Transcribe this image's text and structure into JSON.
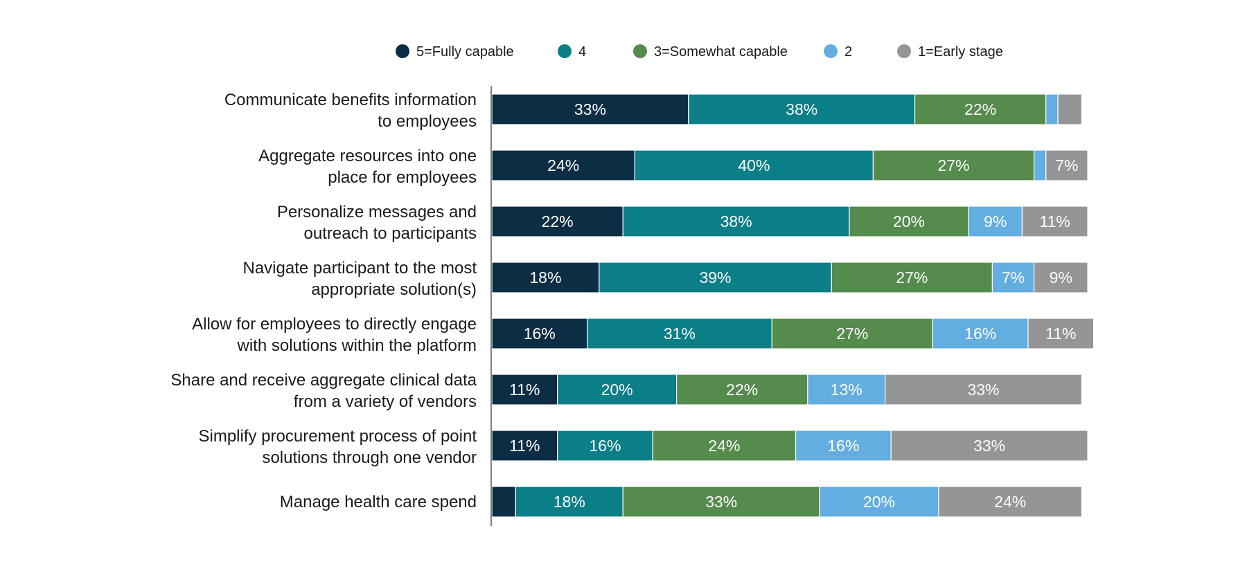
{
  "chart_data": {
    "type": "bar",
    "orientation": "horizontal",
    "stacked": true,
    "title": "",
    "xlabel": "",
    "ylabel": "",
    "xlim": [
      0,
      100
    ],
    "grid": false,
    "legend": {
      "placement": "top",
      "entries": [
        "5=Fully capable",
        "4",
        "3=Somewhat capable",
        "2",
        "1=Early stage"
      ]
    },
    "categories": [
      [
        "Communicate benefits information",
        "to employees"
      ],
      [
        "Aggregate resources into one",
        "place for employees"
      ],
      [
        "Personalize messages and",
        "outreach to participants"
      ],
      [
        "Navigate participant to the most",
        "appropriate solution(s)"
      ],
      [
        "Allow for employees to directly engage",
        "with solutions within the platform"
      ],
      [
        "Share and receive aggregate clinical data",
        "from a variety of vendors"
      ],
      [
        "Simplify procurement process of point",
        "solutions through one vendor"
      ],
      [
        "Manage health care spend"
      ]
    ],
    "series": [
      {
        "name": "5=Fully capable",
        "color": "#0b2e45",
        "values": [
          33,
          24,
          22,
          18,
          16,
          11,
          11,
          4
        ]
      },
      {
        "name": "4",
        "color": "#0b7f88",
        "values": [
          38,
          40,
          38,
          39,
          31,
          20,
          16,
          18
        ]
      },
      {
        "name": "3=Somewhat capable",
        "color": "#558b4c",
        "values": [
          22,
          27,
          20,
          27,
          27,
          22,
          24,
          33
        ]
      },
      {
        "name": "2",
        "color": "#62aee0",
        "values": [
          2,
          2,
          9,
          7,
          16,
          13,
          16,
          20
        ]
      },
      {
        "name": "1=Early stage",
        "color": "#939596",
        "values": [
          4,
          7,
          11,
          9,
          11,
          33,
          33,
          24
        ]
      }
    ],
    "value_suffix": "%"
  }
}
